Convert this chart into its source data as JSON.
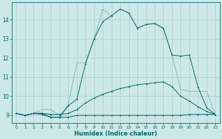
{
  "xlabel": "Humidex (Indice chaleur)",
  "background_color": "#cce8e8",
  "grid_color": "#aacccc",
  "line_color": "#006666",
  "xlim": [
    -0.5,
    23.5
  ],
  "ylim": [
    8.6,
    14.9
  ],
  "yticks": [
    9,
    10,
    11,
    12,
    13,
    14
  ],
  "xticks": [
    0,
    1,
    2,
    3,
    4,
    5,
    6,
    7,
    8,
    9,
    10,
    11,
    12,
    13,
    14,
    15,
    16,
    17,
    18,
    19,
    20,
    21,
    22,
    23
  ],
  "series1_x": [
    0,
    1,
    2,
    3,
    4,
    5,
    6,
    7,
    8,
    9,
    10,
    11,
    12,
    13,
    14,
    15,
    16,
    17,
    18,
    19,
    20,
    21,
    22,
    23
  ],
  "series1_y": [
    9.1,
    9.0,
    9.1,
    9.05,
    8.9,
    8.9,
    9.5,
    9.85,
    11.7,
    13.0,
    13.9,
    14.2,
    14.55,
    14.35,
    13.55,
    13.75,
    13.8,
    13.55,
    12.15,
    12.1,
    12.15,
    10.5,
    9.4,
    9.05
  ],
  "series1_dot": true,
  "series2_x": [
    0,
    1,
    2,
    3,
    4,
    5,
    6,
    7,
    8,
    9,
    10,
    11,
    12,
    13,
    14,
    15,
    16,
    17,
    18,
    19,
    20,
    21,
    22,
    23
  ],
  "series2_y": [
    9.1,
    9.0,
    9.1,
    9.3,
    9.3,
    9.0,
    9.55,
    11.75,
    11.75,
    13.0,
    14.55,
    14.2,
    14.55,
    14.35,
    13.55,
    13.75,
    13.8,
    13.55,
    12.15,
    10.35,
    10.25,
    10.25,
    10.25,
    9.05
  ],
  "series2_dot": false,
  "series3_x": [
    0,
    1,
    2,
    3,
    4,
    5,
    6,
    7,
    8,
    9,
    10,
    11,
    12,
    13,
    14,
    15,
    16,
    17,
    18,
    19,
    20,
    21,
    22,
    23
  ],
  "series3_y": [
    9.1,
    9.0,
    9.1,
    9.1,
    9.05,
    9.05,
    9.1,
    9.3,
    9.65,
    9.9,
    10.1,
    10.25,
    10.4,
    10.5,
    10.6,
    10.65,
    10.7,
    10.75,
    10.5,
    10.0,
    9.75,
    9.45,
    9.2,
    9.05
  ],
  "series3_dot": true,
  "series4_x": [
    0,
    1,
    2,
    3,
    4,
    5,
    6,
    7,
    8,
    9,
    10,
    11,
    12,
    13,
    14,
    15,
    16,
    17,
    18,
    19,
    20,
    21,
    22,
    23
  ],
  "series4_y": [
    9.1,
    9.0,
    9.1,
    9.1,
    8.9,
    8.9,
    8.9,
    9.0,
    9.0,
    9.0,
    9.0,
    9.0,
    9.0,
    9.0,
    9.0,
    9.0,
    9.0,
    9.0,
    9.0,
    9.0,
    9.05,
    9.05,
    9.05,
    9.05
  ],
  "series4_dot": true
}
